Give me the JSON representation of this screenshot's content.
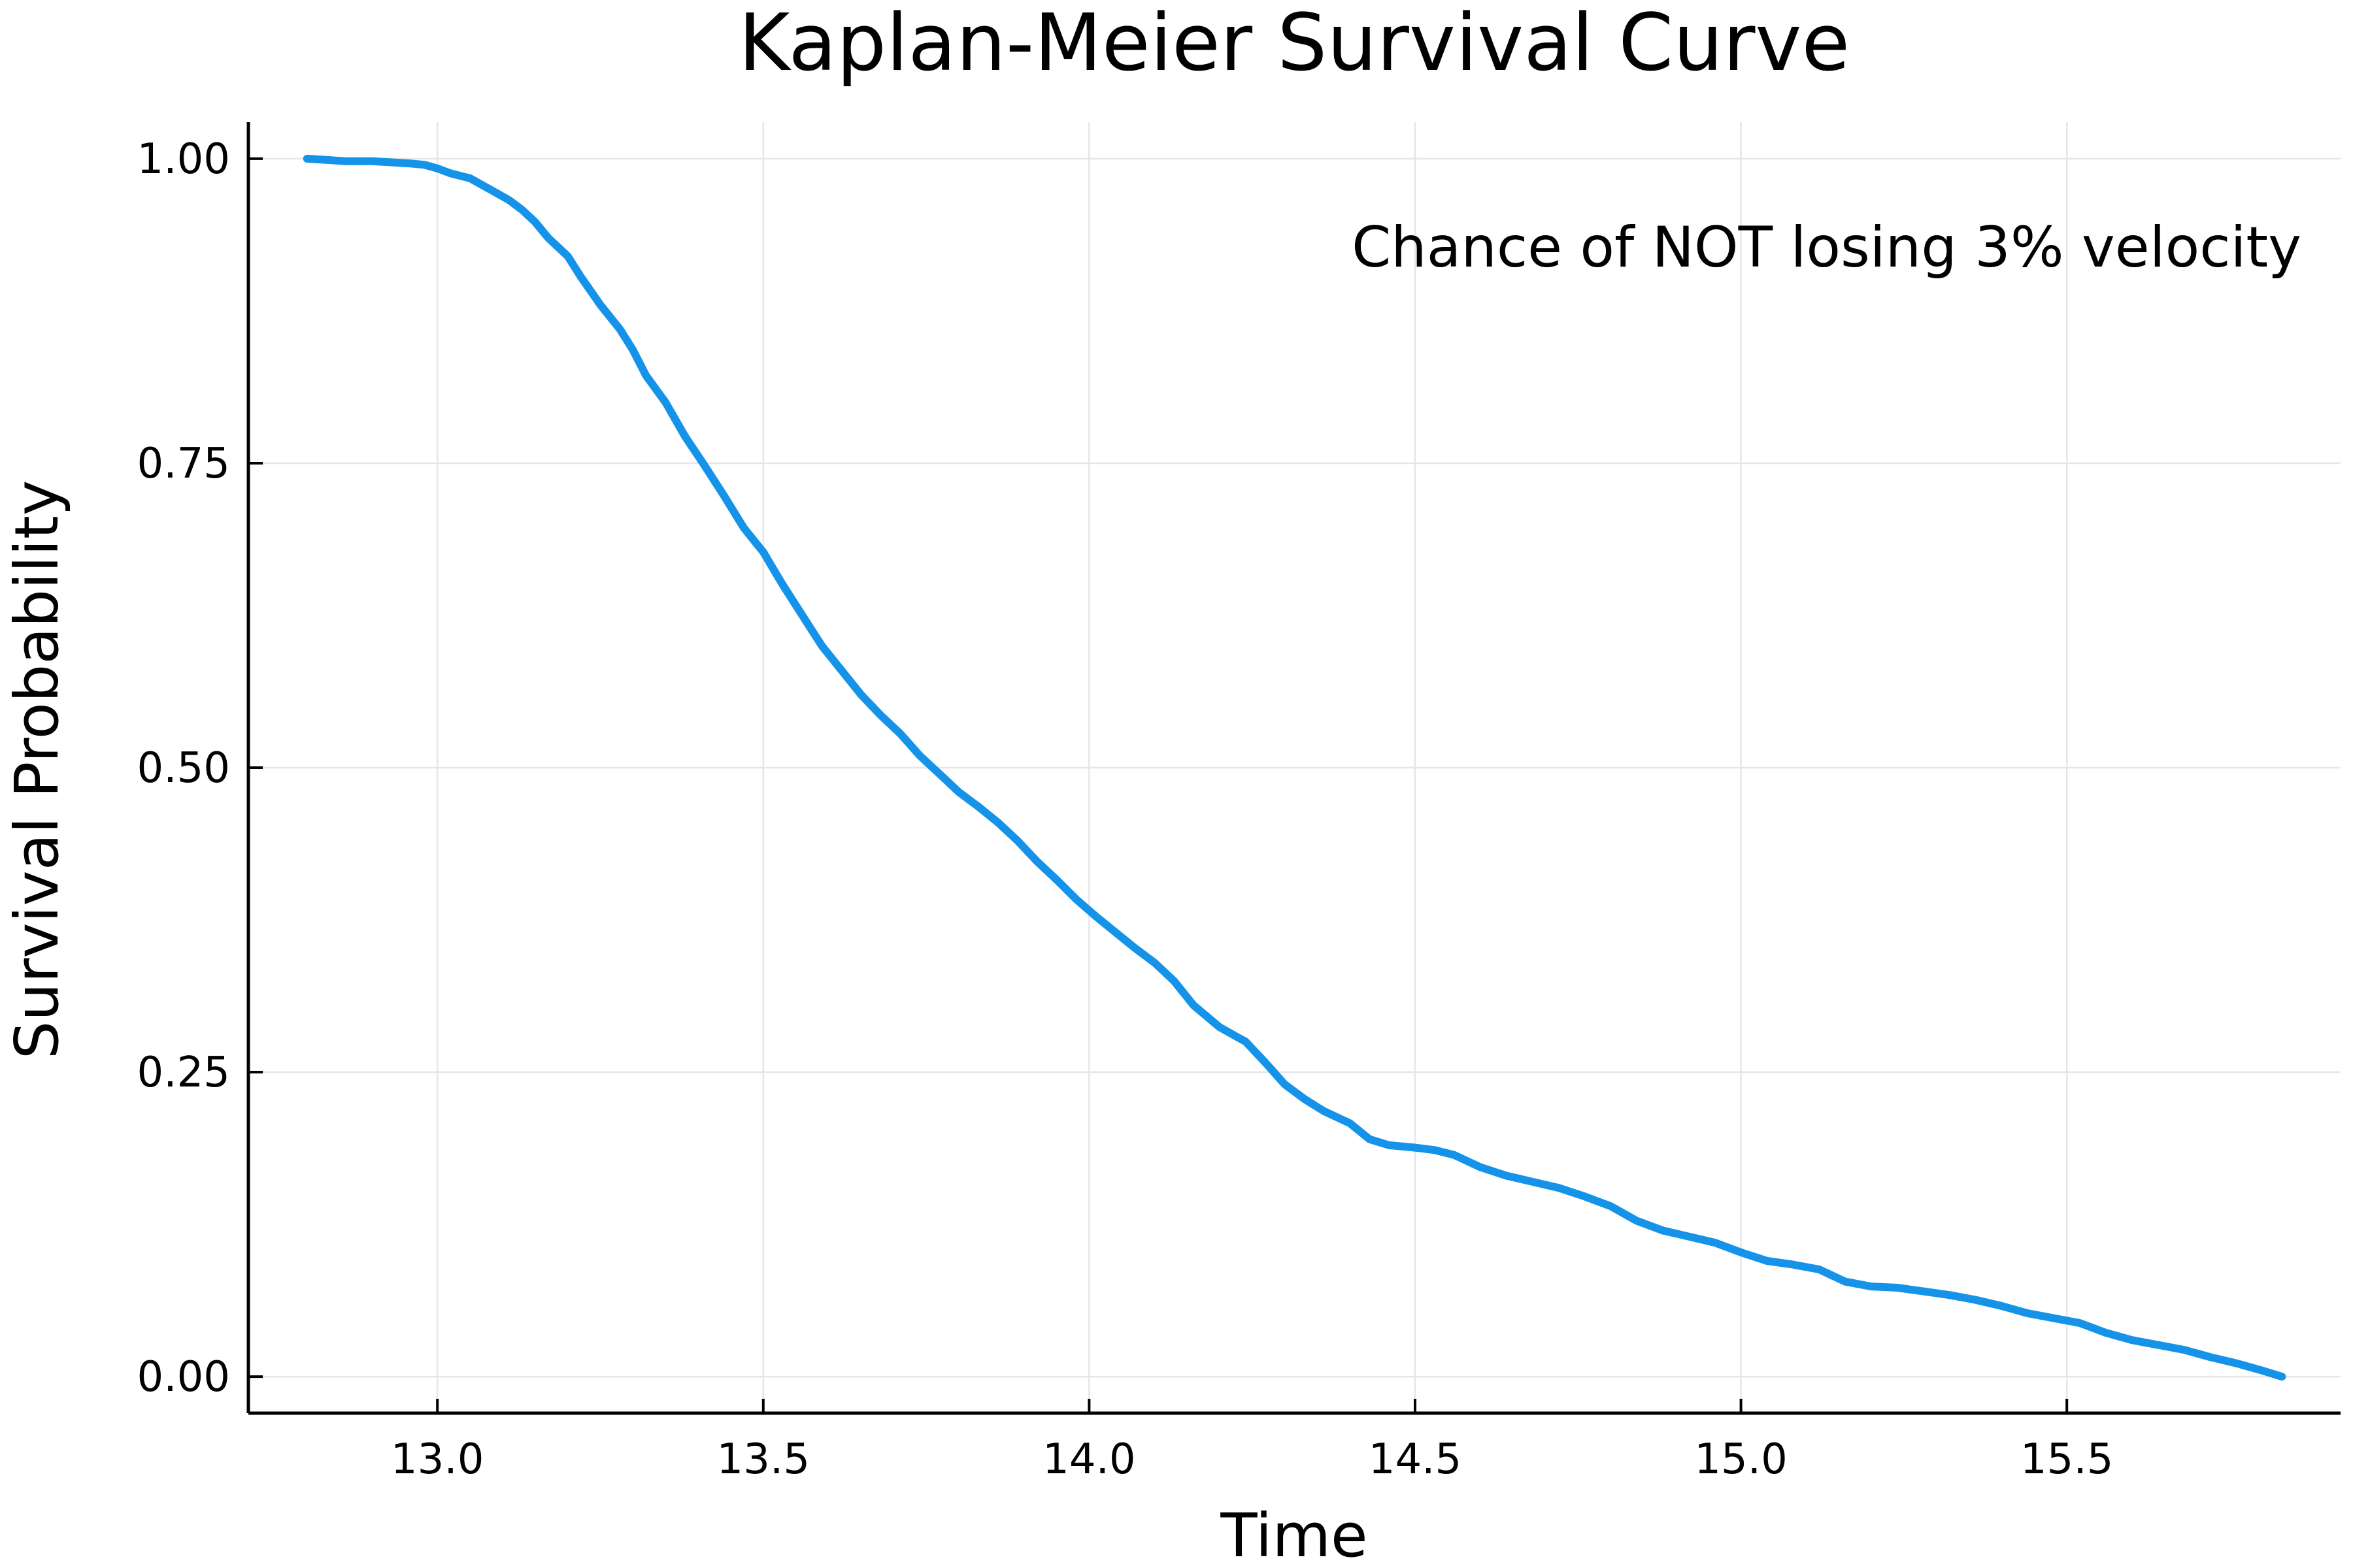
{
  "chart_data": {
    "type": "line",
    "title": "Kaplan-Meier Survival Curve",
    "xlabel": "Time",
    "ylabel": "Survival Probability",
    "annotation": "Chance of NOT losing 3% velocity",
    "xlim": [
      12.71,
      15.92
    ],
    "ylim": [
      -0.03,
      1.03
    ],
    "xticks": [
      13.0,
      13.5,
      14.0,
      14.5,
      15.0,
      15.5
    ],
    "xtick_labels": [
      "13.0",
      "13.5",
      "14.0",
      "14.5",
      "15.0",
      "15.5"
    ],
    "yticks": [
      0.0,
      0.25,
      0.5,
      0.75,
      1.0
    ],
    "ytick_labels": [
      "0.00",
      "0.25",
      "0.50",
      "0.75",
      "1.00"
    ],
    "grid": true,
    "legend": "none",
    "series": [
      {
        "color": "#1593e8",
        "x": [
          12.8,
          12.83,
          12.86,
          12.9,
          12.93,
          12.96,
          12.98,
          13.0,
          13.02,
          13.05,
          13.08,
          13.11,
          13.13,
          13.15,
          13.17,
          13.2,
          13.22,
          13.25,
          13.28,
          13.3,
          13.32,
          13.35,
          13.38,
          13.41,
          13.44,
          13.47,
          13.5,
          13.53,
          13.56,
          13.59,
          13.62,
          13.65,
          13.68,
          13.71,
          13.74,
          13.77,
          13.8,
          13.83,
          13.86,
          13.89,
          13.92,
          13.95,
          13.98,
          14.01,
          14.04,
          14.07,
          14.1,
          14.13,
          14.16,
          14.2,
          14.24,
          14.27,
          14.3,
          14.33,
          14.36,
          14.4,
          14.43,
          14.46,
          14.5,
          14.53,
          14.56,
          14.6,
          14.64,
          14.68,
          14.72,
          14.76,
          14.8,
          14.84,
          14.88,
          14.92,
          14.96,
          15.0,
          15.04,
          15.08,
          15.12,
          15.16,
          15.2,
          15.24,
          15.28,
          15.32,
          15.36,
          15.4,
          15.44,
          15.48,
          15.52,
          15.56,
          15.6,
          15.64,
          15.68,
          15.72,
          15.76,
          15.8,
          15.83
        ],
        "y": [
          1.0,
          0.999,
          0.998,
          0.998,
          0.997,
          0.996,
          0.995,
          0.992,
          0.988,
          0.984,
          0.975,
          0.966,
          0.958,
          0.948,
          0.935,
          0.92,
          0.903,
          0.88,
          0.86,
          0.843,
          0.822,
          0.8,
          0.772,
          0.748,
          0.723,
          0.697,
          0.677,
          0.65,
          0.625,
          0.6,
          0.58,
          0.56,
          0.543,
          0.528,
          0.51,
          0.495,
          0.48,
          0.468,
          0.455,
          0.44,
          0.423,
          0.408,
          0.392,
          0.378,
          0.365,
          0.352,
          0.34,
          0.325,
          0.305,
          0.287,
          0.275,
          0.258,
          0.24,
          0.228,
          0.218,
          0.208,
          0.195,
          0.19,
          0.188,
          0.186,
          0.182,
          0.172,
          0.165,
          0.16,
          0.155,
          0.148,
          0.14,
          0.128,
          0.12,
          0.115,
          0.11,
          0.102,
          0.095,
          0.092,
          0.088,
          0.078,
          0.074,
          0.073,
          0.07,
          0.067,
          0.063,
          0.058,
          0.052,
          0.048,
          0.044,
          0.036,
          0.03,
          0.026,
          0.022,
          0.016,
          0.011,
          0.005,
          0.0
        ]
      }
    ]
  }
}
